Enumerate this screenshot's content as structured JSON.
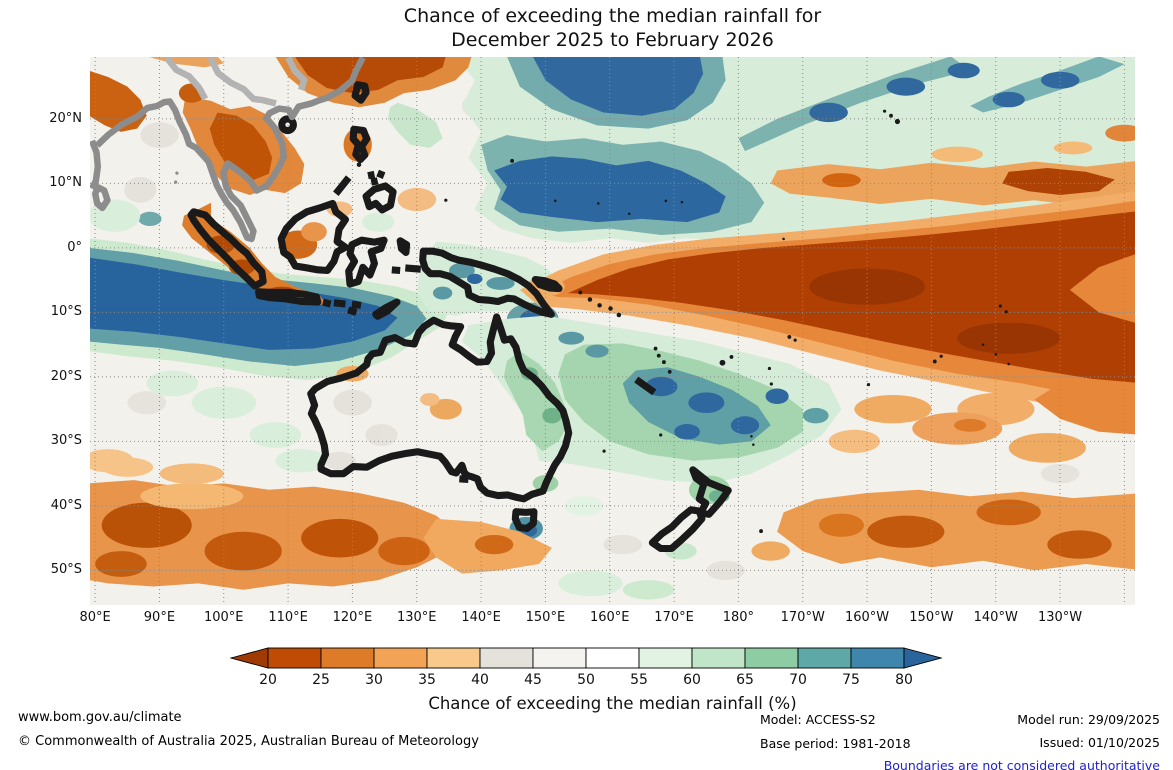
{
  "title": {
    "line1": "Chance of exceeding the median rainfall for",
    "line2": "December 2025 to February 2026"
  },
  "map": {
    "lat_ticks": [
      "20°N",
      "10°N",
      "0°",
      "10°S",
      "20°S",
      "30°S",
      "40°S",
      "50°S"
    ],
    "lon_ticks": [
      "80°E",
      "90°E",
      "100°E",
      "110°E",
      "120°E",
      "130°E",
      "140°E",
      "150°E",
      "160°E",
      "170°E",
      "180°",
      "170°W",
      "160°W",
      "150°W",
      "140°W",
      "130°W"
    ]
  },
  "colorbar": {
    "label": "Chance of exceeding the median rainfall (%)",
    "tick_labels": [
      "20",
      "25",
      "30",
      "35",
      "40",
      "45",
      "50",
      "55",
      "60",
      "65",
      "70",
      "75",
      "80"
    ],
    "segment_colors": [
      "#bf4c05",
      "#dd7b28",
      "#f2a355",
      "#f9c98b",
      "#e5e2db",
      "#f4f3ef",
      "#ffffff",
      "#e2f2e3",
      "#c1e5c8",
      "#8ecda3",
      "#5fa8a8",
      "#3f86ad"
    ],
    "left_arrow_color": "#a03a03",
    "right_arrow_color": "#2a649c"
  },
  "footer": {
    "website": "www.bom.gov.au/climate",
    "copyright": "© Commonwealth of Australia 2025, Australian Bureau of Meteorology",
    "model": "Model: ACCESS-S2",
    "base_period": "Base period: 1981-2018",
    "model_run": "Model run: 29/09/2025",
    "issued": "Issued: 01/10/2025",
    "disclaimer": "Boundaries are not considered authoritative",
    "disclaimer_color": "#2222cc"
  }
}
